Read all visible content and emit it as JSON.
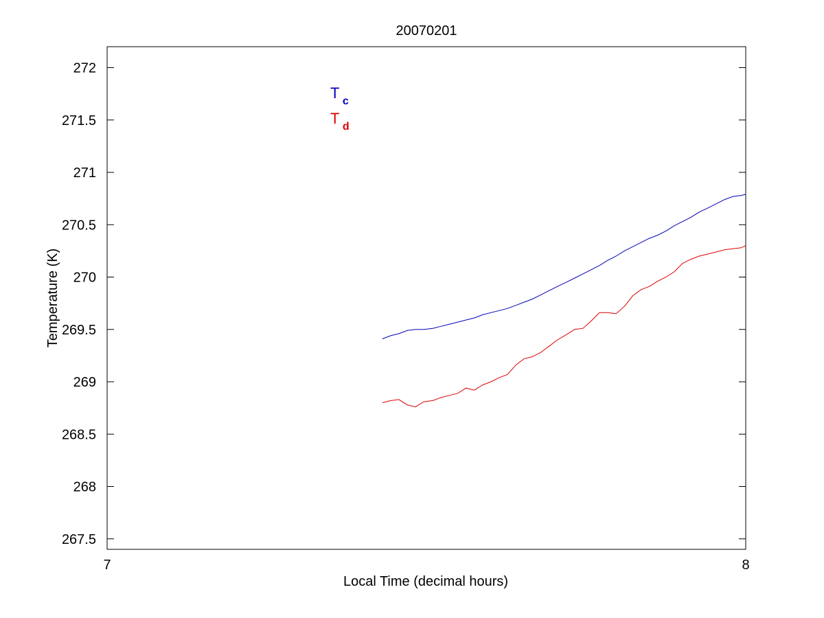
{
  "chart_data": {
    "type": "line",
    "title": "20070201",
    "xlabel": "Local Time (decimal hours)",
    "ylabel": "Temperature (K)",
    "xlim": [
      7,
      8
    ],
    "ylim": [
      267.4,
      272.2
    ],
    "xticks": [
      7,
      8
    ],
    "yticks": [
      267.5,
      268,
      268.5,
      269,
      269.5,
      270,
      270.5,
      271,
      271.5,
      272
    ],
    "grid": false,
    "legend_position": "upper-left",
    "series": [
      {
        "name_main": "T",
        "name_sub": "c",
        "color": "#0000bb",
        "x": [
          7.431,
          7.444,
          7.457,
          7.47,
          7.483,
          7.496,
          7.51,
          7.523,
          7.536,
          7.549,
          7.562,
          7.575,
          7.588,
          7.601,
          7.614,
          7.627,
          7.64,
          7.653,
          7.666,
          7.679,
          7.692,
          7.705,
          7.719,
          7.732,
          7.745,
          7.758,
          7.771,
          7.784,
          7.797,
          7.81,
          7.823,
          7.836,
          7.849,
          7.862,
          7.875,
          7.888,
          7.901,
          7.914,
          7.927,
          7.941,
          7.954,
          7.967,
          7.98,
          7.993,
          8.0
        ],
        "values": [
          269.41,
          269.44,
          269.46,
          269.49,
          269.5,
          269.5,
          269.51,
          269.53,
          269.55,
          269.57,
          269.59,
          269.61,
          269.64,
          269.66,
          269.68,
          269.7,
          269.73,
          269.76,
          269.79,
          269.83,
          269.87,
          269.91,
          269.95,
          269.99,
          270.03,
          270.07,
          270.11,
          270.16,
          270.2,
          270.25,
          270.29,
          270.33,
          270.37,
          270.4,
          270.44,
          270.49,
          270.53,
          270.57,
          270.62,
          270.66,
          270.7,
          270.74,
          270.77,
          270.78,
          270.79
        ]
      },
      {
        "name_main": "T",
        "name_sub": "d",
        "color": "#dd0000",
        "x": [
          7.431,
          7.444,
          7.457,
          7.47,
          7.483,
          7.496,
          7.51,
          7.523,
          7.536,
          7.549,
          7.562,
          7.575,
          7.588,
          7.601,
          7.614,
          7.627,
          7.64,
          7.653,
          7.666,
          7.679,
          7.692,
          7.705,
          7.719,
          7.732,
          7.745,
          7.758,
          7.771,
          7.784,
          7.797,
          7.81,
          7.823,
          7.836,
          7.849,
          7.862,
          7.875,
          7.888,
          7.901,
          7.914,
          7.927,
          7.941,
          7.954,
          7.967,
          7.98,
          7.993,
          8.0
        ],
        "values": [
          268.8,
          268.82,
          268.83,
          268.78,
          268.76,
          268.81,
          268.82,
          268.85,
          268.87,
          268.89,
          268.94,
          268.92,
          268.97,
          269.0,
          269.04,
          269.07,
          269.16,
          269.22,
          269.24,
          269.28,
          269.34,
          269.4,
          269.45,
          269.5,
          269.51,
          269.58,
          269.66,
          269.66,
          269.65,
          269.72,
          269.82,
          269.88,
          269.91,
          269.96,
          270.0,
          270.05,
          270.13,
          270.17,
          270.2,
          270.22,
          270.24,
          270.26,
          270.27,
          270.28,
          270.3
        ]
      }
    ]
  }
}
